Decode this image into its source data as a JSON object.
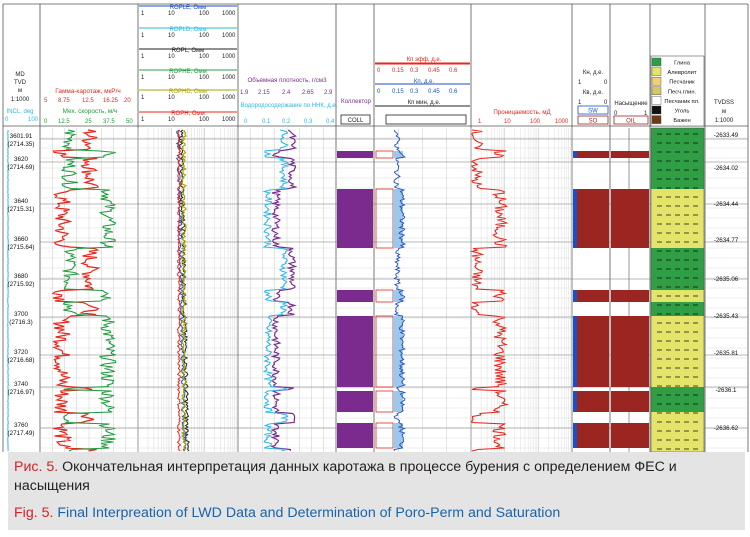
{
  "colors": {
    "red": "#e8261c",
    "green": "#1e9a3c",
    "cyan": "#2eb7e6",
    "purple": "#7b2a8e",
    "brown": "#9b2520",
    "yellow": "#e4e46a",
    "darkgreen": "#2f9e45",
    "blue": "#1d4fc4",
    "olive": "#a5a500",
    "caption_bg": "#e4e4e4",
    "caption_label": "#d2232a",
    "caption_en": "#1a63a8"
  },
  "tracks": {
    "md": {
      "mnemonic": "MD",
      "unit": "TVD",
      "unit2": "м",
      "scale": "1:1000",
      "incl": "INCL, deg",
      "incl_scale": [
        "0",
        "100"
      ]
    },
    "gr": {
      "title": "Гамма-каротаж, мкР/ч",
      "scale": [
        "5",
        "8.75",
        "12.5",
        "16.25",
        "20"
      ],
      "sub": "Мех. скорость, м/ч",
      "sub_scale": [
        "0",
        "12.5",
        "25",
        "37.5",
        "50"
      ]
    },
    "res": {
      "rple": "RОPLE, Омм",
      "rpld": "RОPLD, Омм",
      "rpl": "RОPL, Омм",
      "rphe": "RОPHE, Омм",
      "rphd": "RОPHD, Омм",
      "rph": "RОPH, Омм",
      "scale": [
        "1",
        "10",
        "100",
        "1000"
      ]
    },
    "den": {
      "title": "Объемная плотность, г/см3",
      "scale": [
        "1.9",
        "2.15",
        "2.4",
        "2.65",
        "2.9"
      ],
      "sub": "Водородосодержание по ННК, д.е.",
      "sub_scale": [
        "0",
        "0.1",
        "0.2",
        "0.3",
        "0.4"
      ]
    },
    "coll": {
      "title": "Коллектор",
      "box": "COLL"
    },
    "por": {
      "keff": "Кп эфф, д.е.",
      "kp": "Кп, д.е.",
      "kpmin": "Кп мин, д.е.",
      "scale": [
        "0",
        "0.15",
        "0.3",
        "0.45",
        "0.6"
      ]
    },
    "perm": {
      "title": "Проницаемость, мД",
      "scale": [
        "1",
        "10",
        "100",
        "1000"
      ]
    },
    "sat": {
      "kn": "Кн, д.е.",
      "kv": "Кв, д.е.",
      "scale": [
        "1",
        "0"
      ],
      "sw": "SW",
      "so": "SO"
    },
    "fluid": {
      "title": "Насыщение",
      "scale": [
        "0",
        "1"
      ],
      "oil": "OIL"
    },
    "lith": {
      "items": [
        "Глина",
        "Алевролит",
        "Песчаник",
        "Песч.глин.",
        "Песчаник пл.",
        "Уголь",
        "Бажен"
      ]
    },
    "tvdss": {
      "title": "TVDSS",
      "unit": "м",
      "scale": "1:1000"
    }
  },
  "depth_labels": [
    {
      "md": "3601.91",
      "tvd": "(2714.35)"
    },
    {
      "md": "3620",
      "tvd": "(2714.69)"
    },
    {
      "md": "3640",
      "tvd": "(2715.31)"
    },
    {
      "md": "3660",
      "tvd": "(2715.64)"
    },
    {
      "md": "3680",
      "tvd": "(2715.92)"
    },
    {
      "md": "3700",
      "tvd": "(2716.3)"
    },
    {
      "md": "3720",
      "tvd": "(2716.68)"
    },
    {
      "md": "3740",
      "tvd": "(2716.97)"
    },
    {
      "md": "3760",
      "tvd": "(2717.49)"
    }
  ],
  "tvdss_labels": [
    "-2633.49",
    "-2634.02",
    "-2634.44",
    "-2634.77",
    "-2635.06",
    "-2635.43",
    "-2635.81",
    "-2636.1",
    "-2636.62"
  ],
  "caption": {
    "ru_label": "Рис. 5.",
    "ru_text": " Окончательная интерпретация данных каротажа в процессе бурения с определением ФЕС и насыщения",
    "en_label": "Fig. 5.",
    "en_text": " Final Interpreation of LWD Data and Determination of Poro-Perm and Saturation"
  }
}
